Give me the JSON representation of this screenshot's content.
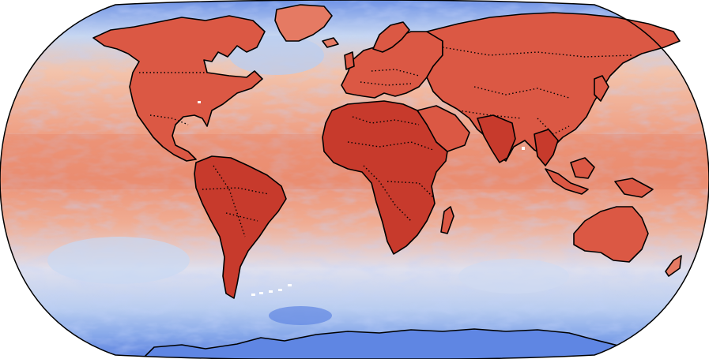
{
  "map": {
    "projection": "Robinson",
    "colormap": "coolwarm",
    "colors": {
      "background": "#ffffff",
      "ocean_base": "#f3c3ab",
      "ocean_warm": "#ee8d71",
      "ocean_cool": "#c7d7f1",
      "ocean_cold": "#7ea2ea",
      "polar": "#5f86e3",
      "land": "#db5844",
      "land_hot": "#c73a2c",
      "land_mid": "#e57a63",
      "land_pale": "#f0aa92",
      "coastline": "#000000",
      "borders": "#000000",
      "outline": "#000000"
    },
    "features": [
      "coastlines",
      "country-borders",
      "globe-outline"
    ]
  }
}
